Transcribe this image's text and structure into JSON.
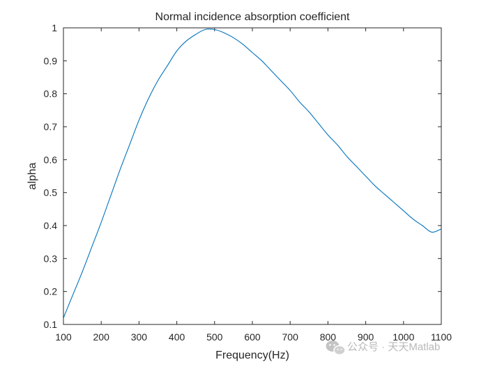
{
  "chart_data": {
    "type": "line",
    "title": "Normal incidence absorption coefficient",
    "xlabel": "Frequency(Hz)",
    "ylabel": "alpha",
    "xlim": [
      100,
      1100
    ],
    "ylim": [
      0.1,
      1
    ],
    "xticks": [
      100,
      200,
      300,
      400,
      500,
      600,
      700,
      800,
      900,
      1000,
      1100
    ],
    "yticks": [
      0.1,
      0.2,
      0.3,
      0.4,
      0.5,
      0.6,
      0.7,
      0.8,
      0.9,
      1
    ],
    "xtick_labels": [
      "100",
      "200",
      "300",
      "400",
      "500",
      "600",
      "700",
      "800",
      "900",
      "1000",
      "1100"
    ],
    "ytick_labels": [
      "0.1",
      "0.2",
      "0.3",
      "0.4",
      "0.5",
      "0.6",
      "0.7",
      "0.8",
      "0.9",
      "1"
    ],
    "grid": false,
    "box": true,
    "line_color": "#0072bd",
    "series": [
      {
        "x": [
          100,
          125,
          150,
          175,
          200,
          225,
          250,
          275,
          300,
          325,
          350,
          375,
          400,
          425,
          450,
          475,
          500,
          525,
          550,
          575,
          600,
          625,
          650,
          675,
          700,
          725,
          750,
          775,
          800,
          825,
          850,
          875,
          900,
          925,
          950,
          975,
          1000,
          1025,
          1050,
          1075,
          1100
        ],
        "y": [
          0.12,
          0.19,
          0.26,
          0.335,
          0.41,
          0.49,
          0.57,
          0.645,
          0.72,
          0.785,
          0.84,
          0.885,
          0.93,
          0.96,
          0.98,
          0.995,
          0.995,
          0.985,
          0.97,
          0.95,
          0.925,
          0.9,
          0.87,
          0.84,
          0.81,
          0.775,
          0.745,
          0.71,
          0.675,
          0.645,
          0.61,
          0.58,
          0.55,
          0.52,
          0.495,
          0.47,
          0.445,
          0.42,
          0.4,
          0.38,
          0.39
        ]
      }
    ]
  },
  "watermark": {
    "text": "公众号 · 天天Matlab",
    "icon": "wechat-icon",
    "color": "#b9b9b9"
  }
}
